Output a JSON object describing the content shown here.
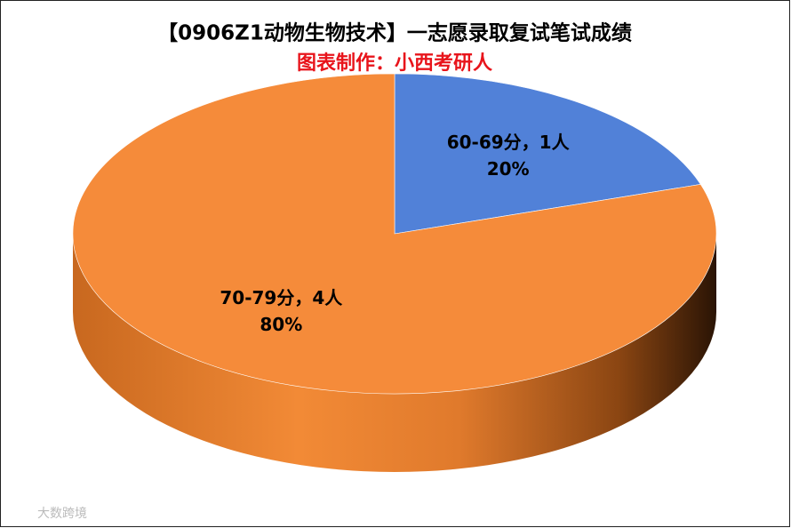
{
  "chart_data": {
    "type": "pie3d",
    "title": "【0906Z1动物生物技术】一志愿录取复试笔试成绩",
    "subtitle": "图表制作：小西考研人",
    "categories": [
      "60-69分，1人",
      "70-79分，4人"
    ],
    "values": [
      20,
      80
    ],
    "value_labels": [
      "20%",
      "80%"
    ],
    "colors": [
      "#5181d8",
      "#f58b3a"
    ],
    "watermark": "大数跨境"
  }
}
